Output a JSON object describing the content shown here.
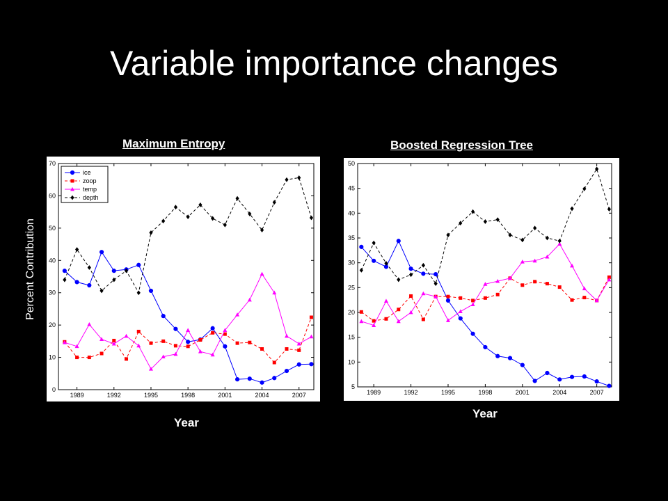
{
  "slide": {
    "title": "Variable importance changes"
  },
  "shared_ylabel": "Percent Contribution",
  "chart_data": [
    {
      "type": "line",
      "title": "Maximum Entropy",
      "xlabel": "Year",
      "ylabel": "Percent Contribution",
      "x": [
        1988,
        1989,
        1990,
        1991,
        1992,
        1993,
        1994,
        1995,
        1996,
        1997,
        1998,
        1999,
        2000,
        2001,
        2002,
        2003,
        2004,
        2005,
        2006,
        2007,
        2008
      ],
      "xticks": [
        "1989",
        "1992",
        "1995",
        "1998",
        "2001",
        "2004",
        "2007"
      ],
      "ylim": [
        0,
        70
      ],
      "yticks": [
        "0",
        "10",
        "20",
        "30",
        "40",
        "50",
        "60",
        "70"
      ],
      "legend_position": "top-left",
      "series": [
        {
          "name": "ice",
          "color": "#0000ff",
          "dash": "solid",
          "marker": "circle",
          "values": [
            36.8,
            33.3,
            32.3,
            42.6,
            36.8,
            37.2,
            38.6,
            30.6,
            22.8,
            18.8,
            14.8,
            15.5,
            19.0,
            13.4,
            3.2,
            3.4,
            2.2,
            3.6,
            5.8,
            7.8,
            7.9
          ]
        },
        {
          "name": "zoop",
          "color": "#ff0000",
          "dash": "dashed",
          "marker": "square",
          "values": [
            14.8,
            10.0,
            10.0,
            11.2,
            15.2,
            9.5,
            18.0,
            14.4,
            15.0,
            13.6,
            13.4,
            15.4,
            17.6,
            17.2,
            14.4,
            14.6,
            12.6,
            8.4,
            12.6,
            12.2,
            22.4
          ]
        },
        {
          "name": "temp",
          "color": "#ff00ff",
          "dash": "solid",
          "marker": "triangle",
          "values": [
            14.6,
            13.4,
            20.2,
            15.6,
            14.2,
            16.6,
            13.6,
            6.4,
            10.2,
            11.0,
            18.4,
            11.8,
            10.8,
            18.4,
            23.2,
            27.8,
            35.8,
            30.0,
            16.6,
            14.2,
            16.4
          ]
        },
        {
          "name": "depth",
          "color": "#000000",
          "dash": "dashed",
          "marker": "diamond",
          "values": [
            34.0,
            43.4,
            37.8,
            30.6,
            34.0,
            36.8,
            30.0,
            48.6,
            52.2,
            56.5,
            53.5,
            57.2,
            53.0,
            51.0,
            59.2,
            54.4,
            49.4,
            58.0,
            65.0,
            65.6,
            53.2
          ]
        }
      ]
    },
    {
      "type": "line",
      "title": "Boosted Regression Tree",
      "xlabel": "Year",
      "ylabel": "",
      "x": [
        1988,
        1989,
        1990,
        1991,
        1992,
        1993,
        1994,
        1995,
        1996,
        1997,
        1998,
        1999,
        2000,
        2001,
        2002,
        2003,
        2004,
        2005,
        2006,
        2007,
        2008
      ],
      "xticks": [
        "1989",
        "1992",
        "1995",
        "1998",
        "2001",
        "2004",
        "2007"
      ],
      "ylim": [
        5,
        50
      ],
      "yticks": [
        "5",
        "10",
        "15",
        "20",
        "25",
        "30",
        "35",
        "40",
        "45",
        "50"
      ],
      "legend_position": "none",
      "series": [
        {
          "name": "ice",
          "color": "#0000ff",
          "dash": "solid",
          "marker": "circle",
          "values": [
            33.2,
            30.4,
            29.2,
            34.4,
            28.8,
            27.8,
            27.7,
            22.4,
            18.8,
            15.7,
            13.0,
            11.2,
            10.8,
            9.4,
            6.2,
            7.8,
            6.5,
            7.0,
            7.1,
            6.1,
            5.2
          ]
        },
        {
          "name": "zoop",
          "color": "#ff0000",
          "dash": "dashed",
          "marker": "square",
          "values": [
            20.1,
            18.3,
            18.7,
            20.6,
            23.3,
            18.6,
            23.2,
            23.2,
            22.9,
            22.4,
            22.9,
            23.6,
            26.9,
            25.5,
            26.2,
            25.8,
            25.1,
            22.5,
            23.0,
            22.4,
            27.1
          ]
        },
        {
          "name": "temp",
          "color": "#ff00ff",
          "dash": "solid",
          "marker": "triangle",
          "values": [
            18.2,
            17.4,
            22.3,
            18.2,
            20.0,
            23.8,
            23.2,
            18.4,
            20.2,
            21.6,
            25.7,
            26.3,
            26.9,
            30.2,
            30.4,
            31.2,
            33.8,
            29.4,
            24.8,
            22.4,
            26.6
          ]
        },
        {
          "name": "depth",
          "color": "#000000",
          "dash": "dashed",
          "marker": "diamond",
          "values": [
            28.5,
            34.0,
            29.9,
            26.6,
            27.6,
            29.5,
            25.8,
            35.6,
            38.0,
            40.3,
            38.3,
            38.7,
            35.6,
            34.6,
            37.0,
            35.0,
            34.4,
            40.9,
            44.9,
            48.9,
            40.8
          ]
        }
      ]
    }
  ]
}
